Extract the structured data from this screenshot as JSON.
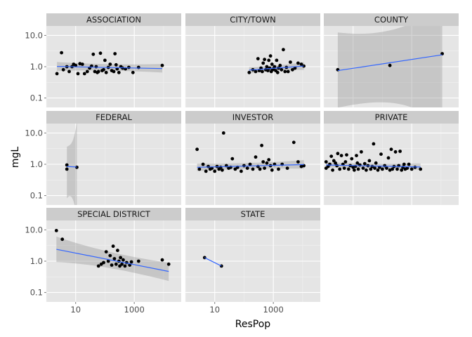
{
  "chart_data": {
    "type": "scatter",
    "facet_layout": "wrap",
    "xlabel": "ResPop",
    "ylabel": "mgL",
    "x_scale": "log10",
    "y_scale": "log10",
    "xlim": [
      1,
      40000
    ],
    "ylim": [
      0.05,
      20
    ],
    "x_ticks": [
      10,
      1000
    ],
    "x_tick_labels": [
      "10",
      "1000"
    ],
    "y_ticks": [
      0.1,
      1,
      10
    ],
    "y_tick_labels": [
      "0.1",
      "1.0",
      "10.0"
    ],
    "colors": {
      "panel": "#e5e5e5",
      "strip": "#cccccc",
      "grid_major": "#ffffff",
      "grid_minor": "#f2f2f2",
      "point": "#000000",
      "fit_line": "#3366ff",
      "ribbon": "#999999"
    },
    "panels": [
      {
        "label": "ASSOCIATION",
        "points": [
          [
            2.3,
            0.6
          ],
          [
            3.3,
            2.8
          ],
          [
            3.8,
            0.8
          ],
          [
            5,
            1.0
          ],
          [
            6,
            0.7
          ],
          [
            7.5,
            1.0
          ],
          [
            8.5,
            1.2
          ],
          [
            10,
            1.1
          ],
          [
            12,
            0.6
          ],
          [
            14,
            1.25
          ],
          [
            17,
            1.2
          ],
          [
            20,
            0.6
          ],
          [
            25,
            0.7
          ],
          [
            30,
            0.9
          ],
          [
            35,
            1.05
          ],
          [
            40,
            2.5
          ],
          [
            45,
            0.7
          ],
          [
            50,
            1.0
          ],
          [
            55,
            0.65
          ],
          [
            60,
            0.7
          ],
          [
            70,
            2.7
          ],
          [
            80,
            0.75
          ],
          [
            90,
            0.8
          ],
          [
            100,
            1.6
          ],
          [
            110,
            0.65
          ],
          [
            130,
            0.95
          ],
          [
            150,
            1.2
          ],
          [
            170,
            0.75
          ],
          [
            200,
            0.7
          ],
          [
            220,
            2.6
          ],
          [
            240,
            1.15
          ],
          [
            260,
            0.85
          ],
          [
            300,
            0.65
          ],
          [
            350,
            1.0
          ],
          [
            400,
            0.9
          ],
          [
            500,
            0.85
          ],
          [
            650,
            0.95
          ],
          [
            900,
            0.65
          ],
          [
            1400,
            0.95
          ],
          [
            9000,
            1.1
          ]
        ],
        "fit": {
          "x": [
            2.3,
            9000
          ],
          "y": [
            1.02,
            0.87
          ],
          "se_upper": [
            1.3,
            1.12
          ],
          "se_lower": [
            0.8,
            0.7
          ]
        }
      },
      {
        "label": "CITY/TOWN",
        "points": [
          [
            150,
            0.65
          ],
          [
            200,
            0.8
          ],
          [
            250,
            0.7
          ],
          [
            300,
            1.8
          ],
          [
            330,
            0.75
          ],
          [
            380,
            0.9
          ],
          [
            420,
            0.7
          ],
          [
            450,
            1.3
          ],
          [
            500,
            1.7
          ],
          [
            550,
            0.8
          ],
          [
            600,
            1.0
          ],
          [
            650,
            0.75
          ],
          [
            700,
            1.6
          ],
          [
            750,
            0.9
          ],
          [
            800,
            2.2
          ],
          [
            850,
            0.7
          ],
          [
            900,
            1.2
          ],
          [
            950,
            0.8
          ],
          [
            1000,
            0.85
          ],
          [
            1100,
            1.0
          ],
          [
            1200,
            0.75
          ],
          [
            1300,
            1.6
          ],
          [
            1400,
            0.65
          ],
          [
            1500,
            0.9
          ],
          [
            1700,
            1.1
          ],
          [
            1900,
            0.8
          ],
          [
            2200,
            3.5
          ],
          [
            2500,
            0.7
          ],
          [
            2800,
            0.95
          ],
          [
            3200,
            0.7
          ],
          [
            3800,
            1.4
          ],
          [
            4500,
            0.8
          ],
          [
            5500,
            0.9
          ],
          [
            7000,
            1.3
          ],
          [
            9000,
            1.2
          ],
          [
            11000,
            1.05
          ]
        ],
        "fit": {
          "x": [
            150,
            11000
          ],
          "y": [
            0.78,
            1.05
          ],
          "se_upper": [
            0.92,
            1.3
          ],
          "se_lower": [
            0.65,
            0.85
          ]
        }
      },
      {
        "label": "COUNTY",
        "points": [
          [
            3,
            0.8
          ],
          [
            180,
            1.1
          ],
          [
            11000,
            2.6
          ]
        ],
        "fit": {
          "x": [
            3,
            11000
          ],
          "y": [
            0.75,
            2.4
          ],
          "se_upper": [
            6,
            35
          ],
          "se_lower": [
            0.1,
            0.05
          ]
        }
      },
      {
        "label": "FEDERAL",
        "points": [
          [
            5,
            0.95
          ],
          [
            5,
            0.7
          ],
          [
            11,
            0.8
          ]
        ],
        "fit": {
          "x": [
            5,
            11
          ],
          "y": [
            0.85,
            0.82
          ],
          "se_upper": [
            2.5,
            10
          ],
          "se_lower": [
            0.15,
            0.05
          ]
        }
      },
      {
        "label": "INVESTOR",
        "points": [
          [
            2.5,
            3.0
          ],
          [
            3,
            0.7
          ],
          [
            4,
            1.0
          ],
          [
            5,
            0.6
          ],
          [
            6,
            0.85
          ],
          [
            7,
            0.7
          ],
          [
            8,
            0.75
          ],
          [
            10,
            0.6
          ],
          [
            12,
            0.85
          ],
          [
            14,
            0.7
          ],
          [
            16,
            0.8
          ],
          [
            18,
            0.65
          ],
          [
            20,
            10
          ],
          [
            25,
            0.9
          ],
          [
            30,
            0.75
          ],
          [
            35,
            0.8
          ],
          [
            40,
            1.5
          ],
          [
            50,
            0.7
          ],
          [
            60,
            0.8
          ],
          [
            80,
            0.6
          ],
          [
            100,
            0.9
          ],
          [
            130,
            0.75
          ],
          [
            160,
            1.0
          ],
          [
            200,
            0.7
          ],
          [
            250,
            1.7
          ],
          [
            300,
            0.85
          ],
          [
            350,
            0.7
          ],
          [
            400,
            4.0
          ],
          [
            450,
            1.2
          ],
          [
            500,
            0.75
          ],
          [
            600,
            1.1
          ],
          [
            700,
            1.4
          ],
          [
            800,
            0.9
          ],
          [
            900,
            0.65
          ],
          [
            1100,
            1.0
          ],
          [
            1500,
            0.7
          ],
          [
            2000,
            1.0
          ],
          [
            3000,
            0.75
          ],
          [
            5000,
            5.0
          ],
          [
            7000,
            1.2
          ],
          [
            9000,
            0.85
          ],
          [
            11000,
            0.9
          ]
        ],
        "fit": {
          "x": [
            2.5,
            11000
          ],
          "y": [
            0.8,
            0.98
          ],
          "se_upper": [
            0.98,
            1.25
          ],
          "se_lower": [
            0.65,
            0.78
          ]
        }
      },
      {
        "label": "PRIVATE",
        "points": [
          [
            1.2,
            1.2
          ],
          [
            1.2,
            0.75
          ],
          [
            1.4,
            0.85
          ],
          [
            1.6,
            1.0
          ],
          [
            1.8,
            1.8
          ],
          [
            2,
            0.65
          ],
          [
            2.2,
            1.3
          ],
          [
            2.5,
            1.1
          ],
          [
            2.8,
            0.9
          ],
          [
            3,
            2.2
          ],
          [
            3.5,
            0.7
          ],
          [
            4,
            1.9
          ],
          [
            4.5,
            1.0
          ],
          [
            5,
            0.75
          ],
          [
            5.5,
            1.2
          ],
          [
            6,
            2.0
          ],
          [
            7,
            0.7
          ],
          [
            8,
            0.9
          ],
          [
            9,
            1.5
          ],
          [
            10,
            0.8
          ],
          [
            11,
            0.65
          ],
          [
            12,
            0.85
          ],
          [
            13,
            1.9
          ],
          [
            14,
            1.1
          ],
          [
            15,
            0.7
          ],
          [
            17,
            0.95
          ],
          [
            19,
            2.5
          ],
          [
            22,
            0.75
          ],
          [
            25,
            1.05
          ],
          [
            28,
            0.65
          ],
          [
            32,
            0.9
          ],
          [
            36,
            1.3
          ],
          [
            40,
            0.7
          ],
          [
            45,
            0.85
          ],
          [
            50,
            4.5
          ],
          [
            55,
            0.75
          ],
          [
            60,
            1.1
          ],
          [
            70,
            0.65
          ],
          [
            80,
            0.8
          ],
          [
            90,
            2.1
          ],
          [
            100,
            0.7
          ],
          [
            120,
            0.9
          ],
          [
            140,
            0.75
          ],
          [
            160,
            1.6
          ],
          [
            180,
            0.65
          ],
          [
            200,
            3.0
          ],
          [
            220,
            0.7
          ],
          [
            250,
            0.85
          ],
          [
            280,
            2.5
          ],
          [
            320,
            0.7
          ],
          [
            360,
            0.9
          ],
          [
            400,
            2.6
          ],
          [
            450,
            0.65
          ],
          [
            500,
            0.8
          ],
          [
            550,
            1.0
          ],
          [
            600,
            0.7
          ],
          [
            700,
            0.75
          ],
          [
            800,
            1.0
          ],
          [
            1000,
            0.7
          ],
          [
            1300,
            0.8
          ],
          [
            2000,
            0.7
          ]
        ],
        "fit": {
          "x": [
            1.2,
            2000
          ],
          "y": [
            0.95,
            0.82
          ],
          "se_upper": [
            1.1,
            1.0
          ],
          "se_lower": [
            0.82,
            0.7
          ]
        }
      },
      {
        "label": "SPECIAL DISTRICT",
        "points": [
          [
            2.2,
            9.5
          ],
          [
            3.5,
            5.0
          ],
          [
            60,
            0.7
          ],
          [
            75,
            0.8
          ],
          [
            90,
            0.9
          ],
          [
            110,
            2.0
          ],
          [
            130,
            1.0
          ],
          [
            150,
            1.5
          ],
          [
            170,
            0.75
          ],
          [
            190,
            3.0
          ],
          [
            210,
            1.2
          ],
          [
            240,
            0.8
          ],
          [
            270,
            2.2
          ],
          [
            300,
            1.0
          ],
          [
            320,
            0.7
          ],
          [
            340,
            1.3
          ],
          [
            380,
            0.8
          ],
          [
            420,
            1.1
          ],
          [
            480,
            0.7
          ],
          [
            550,
            0.9
          ],
          [
            700,
            0.75
          ],
          [
            800,
            0.95
          ],
          [
            1400,
            1.0
          ],
          [
            9000,
            1.1
          ],
          [
            15000,
            0.8
          ]
        ],
        "fit": {
          "x": [
            2.2,
            15000
          ],
          "y": [
            2.4,
            0.47
          ],
          "se_upper": [
            4.8,
            0.75
          ],
          "se_lower": [
            1.2,
            0.28
          ]
        }
      },
      {
        "label": "STATE",
        "points": [
          [
            4.5,
            1.3
          ],
          [
            17,
            0.7
          ]
        ],
        "fit": {
          "x": [
            4.5,
            17
          ],
          "y": [
            1.3,
            0.7
          ]
        }
      }
    ]
  }
}
